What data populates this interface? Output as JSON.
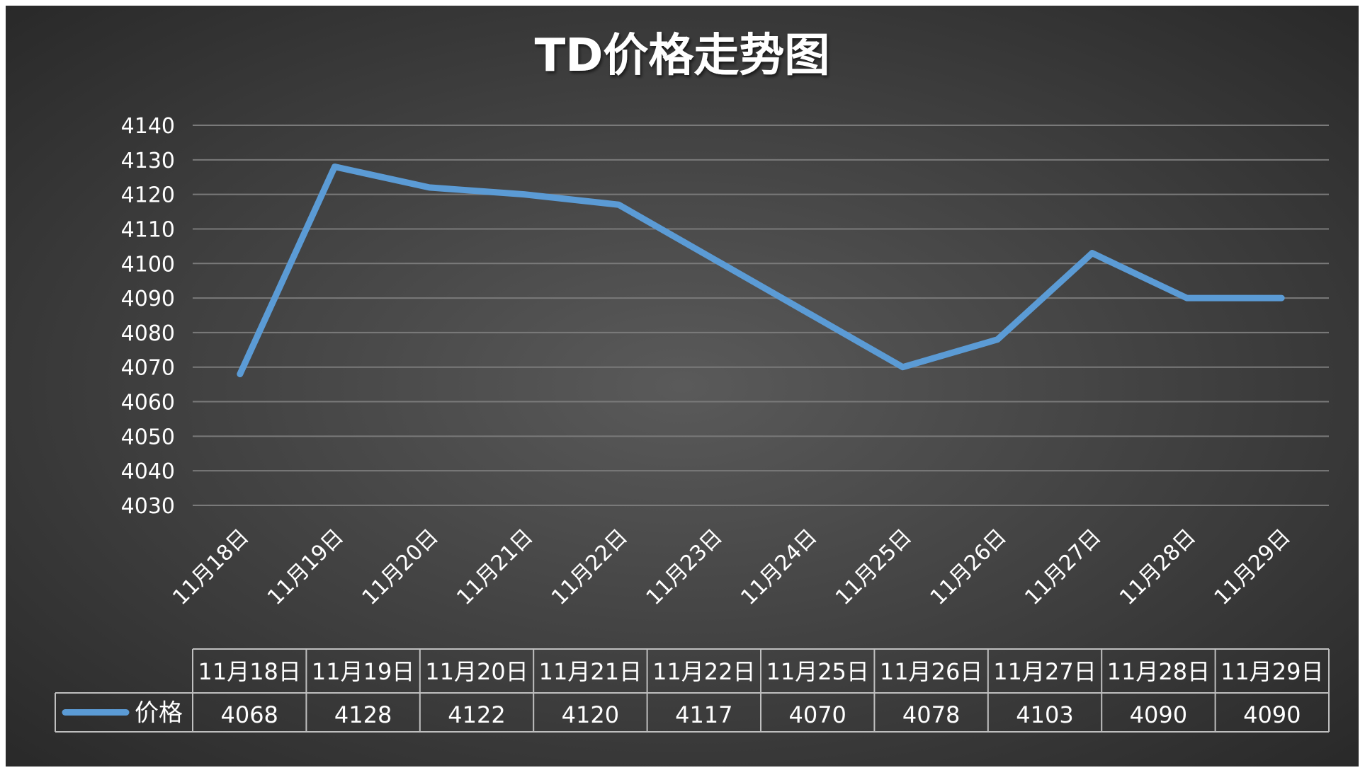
{
  "chart_data": {
    "type": "line",
    "title": "TD价格走势图",
    "categories": [
      "11月18日",
      "11月19日",
      "11月20日",
      "11月21日",
      "11月22日",
      "11月23日",
      "11月24日",
      "11月25日",
      "11月26日",
      "11月27日",
      "11月28日",
      "11月29日"
    ],
    "series": [
      {
        "name": "价格",
        "values": [
          4068,
          4128,
          4122,
          4120,
          4117,
          null,
          null,
          4070,
          4078,
          4103,
          4090,
          4090
        ]
      }
    ],
    "ylim": [
      4030,
      4140
    ],
    "yticks": [
      4140,
      4130,
      4120,
      4110,
      4100,
      4090,
      4080,
      4070,
      4060,
      4050,
      4040,
      4030
    ],
    "grid": true,
    "gaps_connected": true,
    "data_table": {
      "columns": [
        "11月18日",
        "11月19日",
        "11月20日",
        "11月21日",
        "11月22日",
        "11月25日",
        "11月26日",
        "11月27日",
        "11月28日",
        "11月29日"
      ],
      "row_label": "价格",
      "values": [
        "4068",
        "4128",
        "4122",
        "4120",
        "4117",
        "4070",
        "4078",
        "4103",
        "4090",
        "4090"
      ]
    }
  },
  "colors": {
    "background_center": "#5a5a5a",
    "background_edge": "#262626",
    "line": "#5b9bd5",
    "text": "#ffffff",
    "gridline": "#7a7a7a",
    "table_border": "#bfbfbf"
  }
}
